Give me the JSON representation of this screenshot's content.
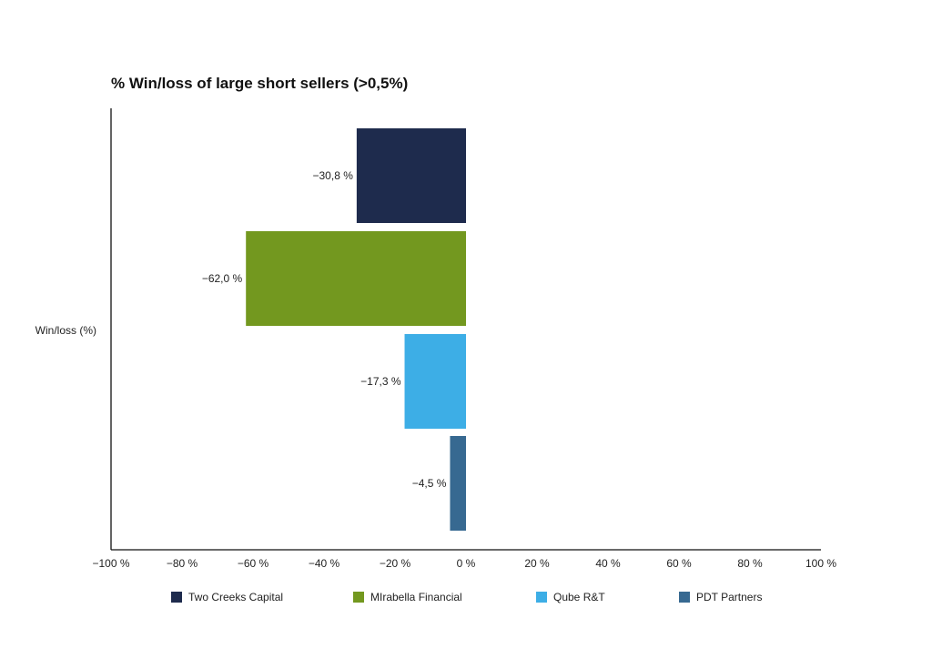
{
  "chart_data": {
    "type": "bar",
    "orientation": "horizontal",
    "title": "% Win/loss of large short sellers (>0,5%)",
    "ylabel": "Win/loss (%)",
    "xlabel": "",
    "xlim": [
      -100,
      100
    ],
    "x_ticks": [
      -100,
      -80,
      -60,
      -40,
      -20,
      0,
      20,
      40,
      60,
      80,
      100
    ],
    "x_tick_labels": [
      "−100 %",
      "−80 %",
      "−60 %",
      "−40 %",
      "−20 %",
      "0 %",
      "20 %",
      "40 %",
      "60 %",
      "80 %",
      "100 %"
    ],
    "grid": false,
    "legend_position": "bottom",
    "series": [
      {
        "name": "Two Creeks Capital",
        "value": -30.8,
        "label": "−30,8 %",
        "color": "#1e2b4d"
      },
      {
        "name": "MIrabella Financial",
        "value": -62.0,
        "label": "−62,0 %",
        "color": "#73981f"
      },
      {
        "name": "Qube R&T",
        "value": -17.3,
        "label": "−17,3 %",
        "color": "#3daee6"
      },
      {
        "name": "PDT Partners",
        "value": -4.5,
        "label": "−4,5 %",
        "color": "#376991"
      }
    ]
  }
}
